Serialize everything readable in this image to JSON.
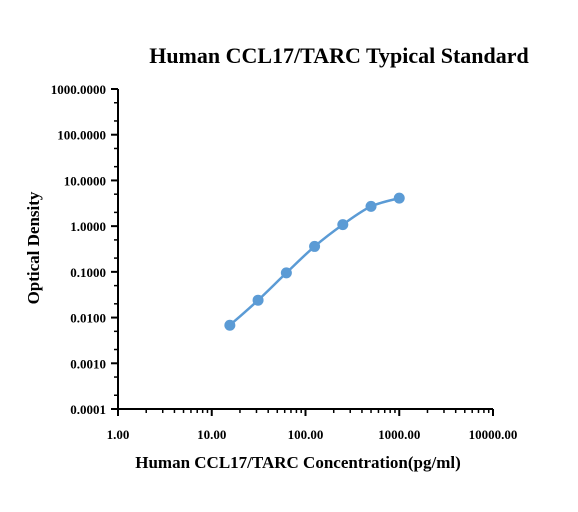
{
  "chart_data": {
    "type": "line",
    "title": "Human CCL17/TARC Typical Standard",
    "xlabel": "Human CCL17/TARC Concentration(pg/ml)",
    "ylabel": "Optical Density",
    "x_scale": "log",
    "y_scale": "log",
    "xlim": [
      1,
      10000
    ],
    "ylim": [
      0.0001,
      1000
    ],
    "x_ticks": [
      "1.00",
      "10.00",
      "100.00",
      "1000.00",
      "10000.00"
    ],
    "y_ticks": [
      "0.0001",
      "0.0010",
      "0.0100",
      "0.1000",
      "1.0000",
      "10.0000",
      "100.0000",
      "1000.0000"
    ],
    "grid": false,
    "series": [
      {
        "x": [
          15.6,
          31.2,
          62.5,
          125,
          250,
          500,
          1000
        ],
        "y": [
          0.0068,
          0.024,
          0.095,
          0.36,
          1.08,
          2.7,
          4.1
        ],
        "color": "#5b9bd5"
      }
    ]
  }
}
